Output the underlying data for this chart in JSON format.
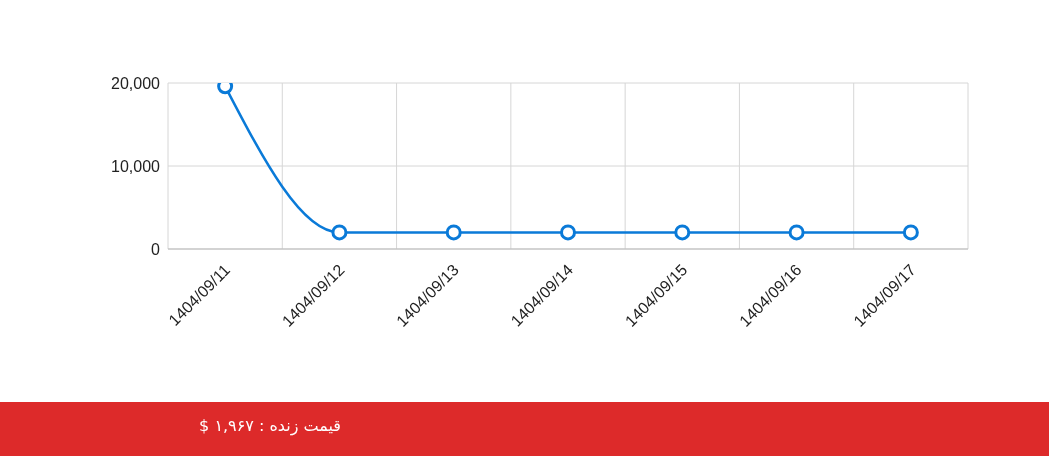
{
  "chart_data": {
    "type": "line",
    "categories": [
      "1404/09/11",
      "1404/09/12",
      "1404/09/13",
      "1404/09/14",
      "1404/09/15",
      "1404/09/16",
      "1404/09/17"
    ],
    "values": [
      19600,
      2000,
      2000,
      2000,
      2000,
      2000,
      2000
    ],
    "color": "#0a7ad8",
    "ylim": [
      0,
      20000
    ],
    "yticks": [
      0,
      {
        "value": 10000,
        "label": "10,000"
      },
      {
        "value": 20000,
        "label": "20,000"
      }
    ],
    "grid": true,
    "marker": "circle",
    "annotations": [
      "قیمت زنده : ۱,۹۶۷ $"
    ]
  }
}
